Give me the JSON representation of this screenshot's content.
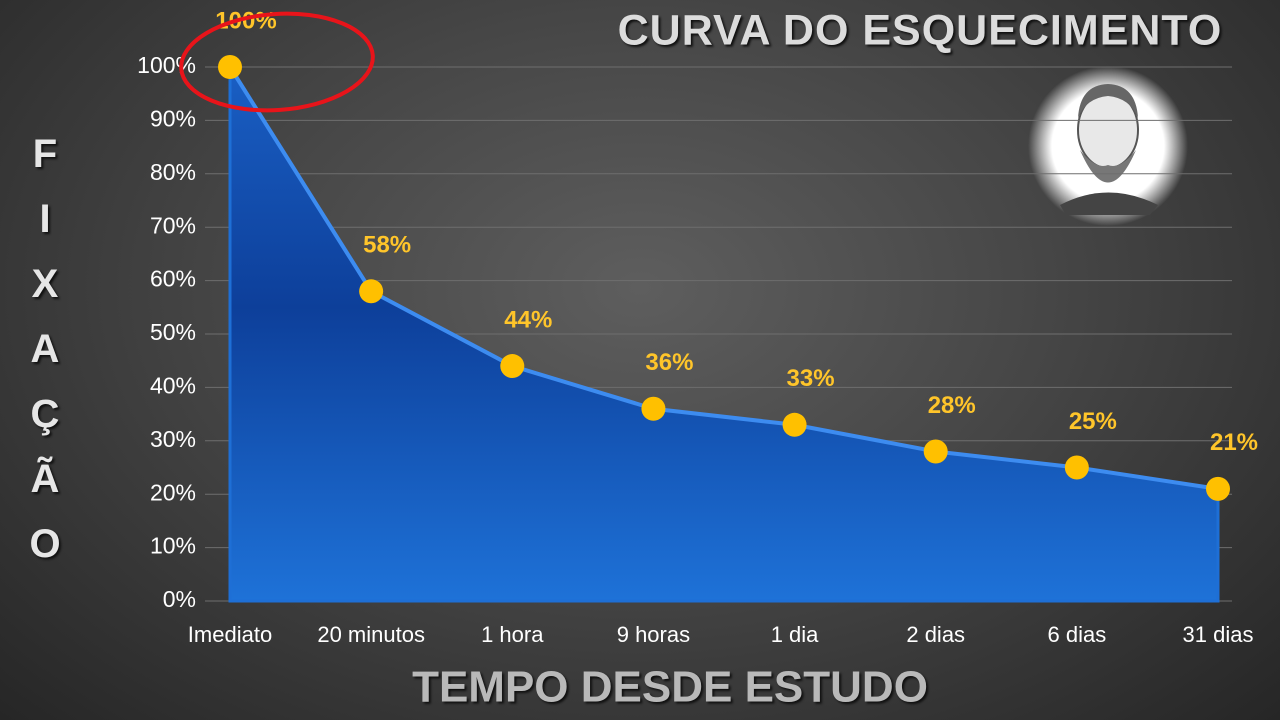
{
  "chart_data": {
    "type": "area",
    "title": "CURVA DO ESQUECIMENTO",
    "y_label": "FIXAÇÃO",
    "x_label": "TEMPO DESDE ESTUDO",
    "categories": [
      "Imediato",
      "20 minutos",
      "1 hora",
      "9 horas",
      "1 dia",
      "2 dias",
      "6 dias",
      "31 dias"
    ],
    "values": [
      100,
      58,
      44,
      36,
      33,
      28,
      25,
      21
    ],
    "value_labels": [
      "100%",
      "58%",
      "44%",
      "36%",
      "33%",
      "28%",
      "25%",
      "21%"
    ],
    "color": "#1e6fd6",
    "marker_color": "#ffc000",
    "ylim": [
      0,
      100
    ],
    "yticks": [
      {
        "value": 0,
        "label": "0%"
      },
      {
        "value": 10,
        "label": "10%"
      },
      {
        "value": 20,
        "label": "20%"
      },
      {
        "value": 30,
        "label": "30%"
      },
      {
        "value": 40,
        "label": "40%"
      },
      {
        "value": 50,
        "label": "50%"
      },
      {
        "value": 60,
        "label": "60%"
      },
      {
        "value": 70,
        "label": "70%"
      },
      {
        "value": 80,
        "label": "80%"
      },
      {
        "value": 90,
        "label": "90%"
      },
      {
        "value": 100,
        "label": "100%"
      }
    ],
    "grid": true
  }
}
